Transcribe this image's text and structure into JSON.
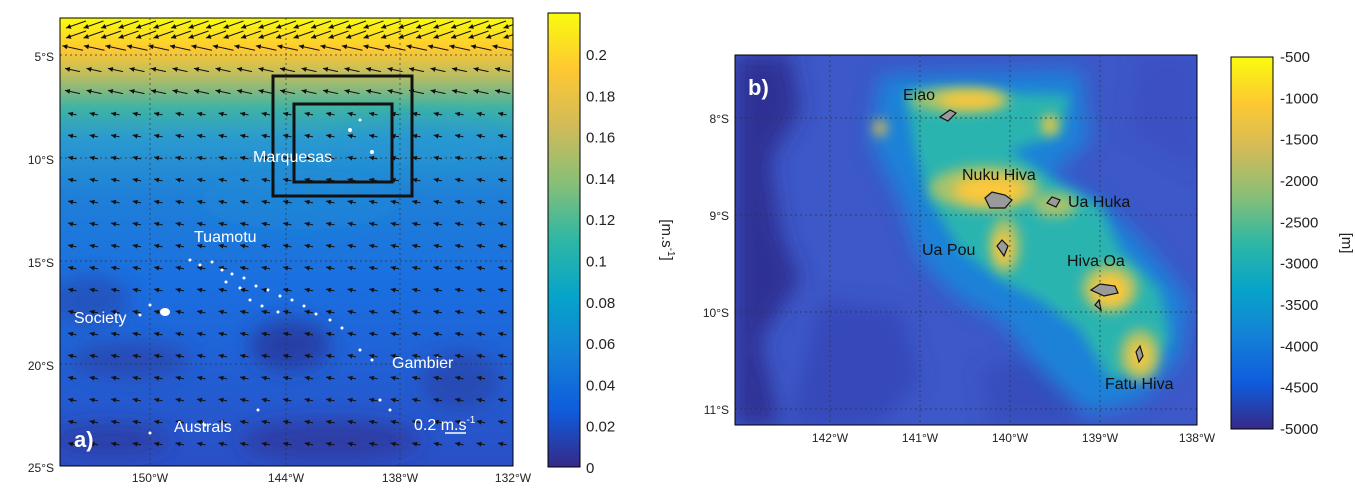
{
  "panel_a": {
    "panel_label": "a)",
    "x_ticks": [
      "150°W",
      "144°W",
      "138°W",
      "132°W"
    ],
    "y_ticks": [
      "5°S",
      "10°S",
      "15°S",
      "20°S",
      "25°S"
    ],
    "places": [
      "Marquesas",
      "Tuamotu",
      "Society",
      "Gambier",
      "Australs"
    ],
    "scale_label": "0.2 m.s",
    "scale_label_sup": "-1",
    "colorbar": {
      "ticks": [
        "0.2",
        "0.18",
        "0.16",
        "0.14",
        "0.12",
        "0.1",
        "0.08",
        "0.06",
        "0.04",
        "0.02",
        "0"
      ],
      "unit": "[m.s",
      "unit_sup": "-1",
      "unit_end": "]"
    }
  },
  "panel_b": {
    "panel_label": "b)",
    "x_ticks": [
      "142°W",
      "141°W",
      "140°W",
      "139°W",
      "138°W"
    ],
    "y_ticks": [
      "8°S",
      "9°S",
      "10°S",
      "11°S"
    ],
    "islands": [
      "Eiao",
      "Nuku Hiva",
      "Ua Huka",
      "Ua Pou",
      "Hiva Oa",
      "Fatu Hiva"
    ],
    "colorbar": {
      "ticks": [
        "-500",
        "-1000",
        "-1500",
        "-2000",
        "-2500",
        "-3000",
        "-3500",
        "-4000",
        "-4500",
        "-5000"
      ],
      "unit": "[m]"
    }
  },
  "colors": {
    "colormap": [
      "#352a87",
      "#0f5cdd",
      "#1481d6",
      "#06a4ca",
      "#2eb7a4",
      "#87bf77",
      "#d1bb59",
      "#fec832",
      "#f9fb0e"
    ],
    "ocean_deep": "#3d58c8",
    "frame": "#000000"
  }
}
